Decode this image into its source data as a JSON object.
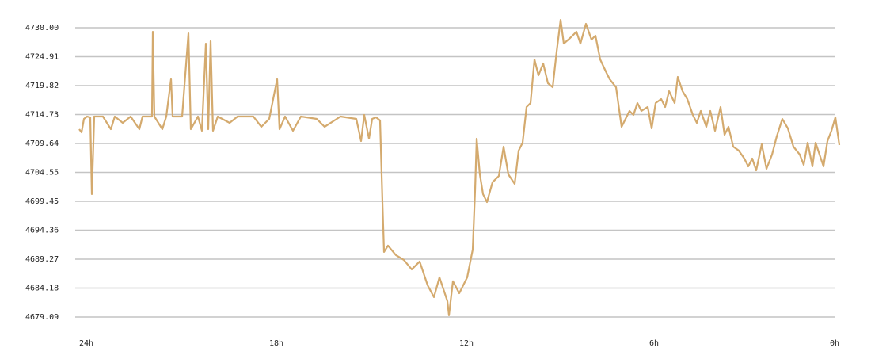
{
  "chart_data": {
    "type": "line",
    "x": [
      24,
      23.925,
      23.85,
      23.75,
      23.65,
      23.6,
      23.525,
      23.25,
      23,
      22.875,
      22.625,
      22.375,
      22.1,
      22,
      21.7,
      21.675,
      21.625,
      21.375,
      21.25,
      21.1,
      21.05,
      20.75,
      20.55,
      20.475,
      20.25,
      20.125,
      20,
      19.925,
      19.85,
      19.775,
      19.625,
      19.25,
      19,
      18.5,
      18.25,
      18,
      17.75,
      17.675,
      17.5,
      17.25,
      17,
      16.5,
      16.25,
      15.75,
      15.25,
      15.1,
      15,
      14.85,
      14.75,
      14.625,
      14.5,
      14.425,
      14.375,
      14.25,
      14,
      13.75,
      13.5,
      13.25,
      13,
      12.8,
      12.625,
      12.375,
      12.325,
      12.2,
      12,
      11.75,
      11.575,
      11.5,
      11.45,
      11.35,
      11.25,
      11.125,
      10.95,
      10.75,
      10.6,
      10.45,
      10.25,
      10.125,
      10,
      9.875,
      9.75,
      9.625,
      9.5,
      9.35,
      9.2,
      9.05,
      8.925,
      8.8,
      8.7,
      8.5,
      8.3,
      8.175,
      8,
      7.825,
      7.7,
      7.55,
      7.375,
      7.25,
      7.05,
      6.875,
      6.75,
      6.625,
      6.5,
      6.375,
      6.25,
      6.05,
      5.925,
      5.8,
      5.625,
      5.5,
      5.375,
      5.2,
      5.1,
      4.95,
      4.8,
      4.625,
      4.5,
      4.375,
      4.2,
      4.075,
      3.925,
      3.75,
      3.625,
      3.5,
      3.35,
      3.175,
      3,
      2.875,
      2.75,
      2.625,
      2.45,
      2.3,
      2.125,
      1.975,
      1.8,
      1.625,
      1.45,
      1.25,
      1.125,
      1,
      0.85,
      0.75,
      0.625,
      0.5,
      0.375,
      0.25,
      0.125,
      0
    ],
    "series": [
      {
        "color": "#d4aa6e",
        "values": [
          4712.15,
          4711.59,
          4713.96,
          4714.38,
          4714.24,
          4700.72,
          4714.38,
          4714.38,
          4712.15,
          4714.38,
          4713.27,
          4714.38,
          4712.15,
          4714.38,
          4714.38,
          4729.3,
          4714.38,
          4712.15,
          4714.38,
          4720.94,
          4714.38,
          4714.38,
          4729.02,
          4712.15,
          4714.38,
          4711.87,
          4727.21,
          4712.15,
          4727.63,
          4711.87,
          4714.38,
          4713.27,
          4714.38,
          4714.38,
          4712.57,
          4713.96,
          4720.94,
          4712.15,
          4714.38,
          4711.87,
          4714.38,
          4713.96,
          4712.57,
          4714.38,
          4713.96,
          4710.06,
          4714.66,
          4710.48,
          4713.96,
          4714.24,
          4713.68,
          4699.32,
          4690.54,
          4691.65,
          4689.98,
          4689.14,
          4687.47,
          4688.86,
          4684.68,
          4682.59,
          4686.07,
          4681.89,
          4679.38,
          4685.38,
          4683.28,
          4686.07,
          4690.95,
          4701.41,
          4710.48,
          4704.2,
          4700.72,
          4699.32,
          4702.81,
          4703.92,
          4709.08,
          4704.2,
          4702.53,
          4708.39,
          4709.78,
          4716.06,
          4716.75,
          4724.42,
          4721.63,
          4723.72,
          4720.24,
          4719.54,
          4725.82,
          4731.39,
          4727.21,
          4728.19,
          4729.3,
          4727.21,
          4730.7,
          4727.91,
          4728.61,
          4724.42,
          4722.33,
          4720.94,
          4719.54,
          4712.57,
          4713.96,
          4715.36,
          4714.66,
          4716.75,
          4715.36,
          4716.06,
          4712.29,
          4716.75,
          4717.45,
          4716.06,
          4718.84,
          4716.75,
          4721.35,
          4718.84,
          4717.45,
          4714.66,
          4713.27,
          4715.36,
          4712.57,
          4715.36,
          4711.87,
          4716.06,
          4711.17,
          4712.57,
          4709.08,
          4708.39,
          4706.99,
          4705.6,
          4706.99,
          4704.9,
          4709.5,
          4705.18,
          4707.69,
          4710.9,
          4713.96,
          4712.29,
          4709.08,
          4707.69,
          4705.88,
          4709.78,
          4705.6,
          4709.78,
          4707.69,
          4705.6,
          4710.06,
          4711.87,
          4714.24,
          4709.36
        ]
      }
    ],
    "xlim": [
      24,
      0
    ],
    "ylim": [
      4678,
      4732
    ],
    "xticks": [
      {
        "value": 24,
        "label": "24h"
      },
      {
        "value": 18,
        "label": "18h"
      },
      {
        "value": 12,
        "label": "12h"
      },
      {
        "value": 6,
        "label": "6h"
      },
      {
        "value": 0,
        "label": "0h"
      }
    ],
    "yticks": [
      {
        "value": 4730,
        "label": "4730.00"
      },
      4724.91,
      4719.82,
      4714.73,
      4709.64,
      4704.55,
      4699.45,
      4694.36,
      4689.27,
      4684.18,
      4679.09
    ],
    "grid": true
  }
}
